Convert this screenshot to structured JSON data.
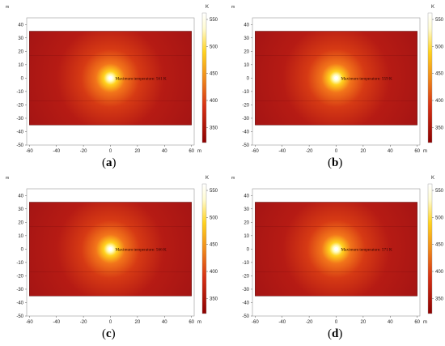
{
  "panels": [
    {
      "id": "a",
      "label": "a",
      "max_temp_text": "Maximum temperature: 561 K"
    },
    {
      "id": "b",
      "label": "b",
      "max_temp_text": "Maximum temperature: 559 K"
    },
    {
      "id": "c",
      "label": "c",
      "max_temp_text": "Maximum temperature: 566 K"
    },
    {
      "id": "d",
      "label": "d",
      "max_temp_text": "Maximum temperature: 571 K"
    }
  ],
  "axes": {
    "unit": "m",
    "x_ticks": [
      -60,
      -40,
      -20,
      0,
      20,
      40,
      60
    ],
    "y_ticks": [
      40,
      30,
      20,
      10,
      0,
      -10,
      -20,
      -30,
      -40,
      -50
    ]
  },
  "colorbar": {
    "unit": "K",
    "ticks": [
      550,
      500,
      450,
      400,
      350
    ]
  },
  "colors": {
    "background_field": "#a31414",
    "hot_core": "#ffffc8",
    "warm": "#ffd21e",
    "colorbar_top": "#ffffff",
    "colorbar_bottom": "#8c0000"
  }
}
